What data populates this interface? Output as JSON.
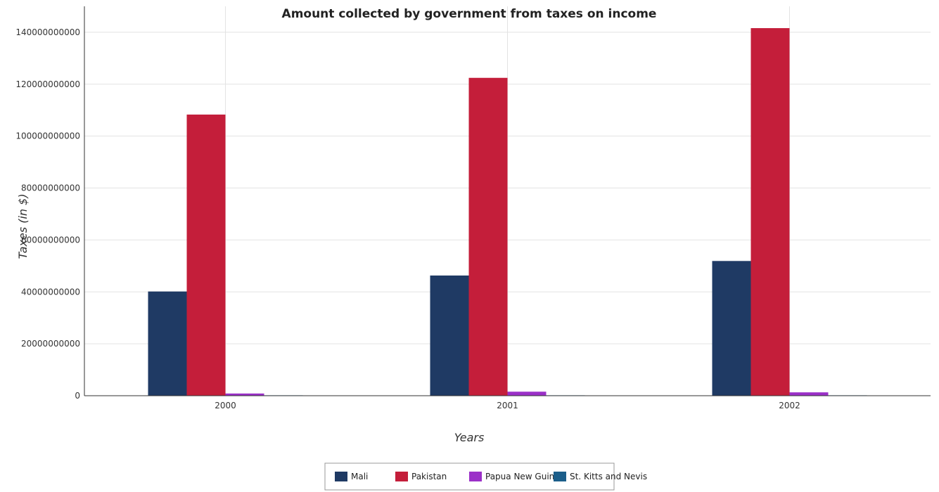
{
  "chart_data": {
    "type": "bar",
    "title": "Amount collected by government from taxes on income",
    "xlabel": "Years",
    "ylabel": "Taxes (in $)",
    "categories": [
      "2000",
      "2001",
      "2002"
    ],
    "ylim": [
      0,
      150000000000
    ],
    "yticks": [
      0,
      20000000000,
      40000000000,
      60000000000,
      80000000000,
      100000000000,
      120000000000,
      140000000000
    ],
    "ytick_labels": [
      "0",
      "20000000000",
      "40000000000",
      "60000000000",
      "80000000000",
      "100000000000",
      "120000000000",
      "140000000000"
    ],
    "grid": true,
    "legend_position": "bottom-center",
    "series": [
      {
        "name": "Mali",
        "color": "#1f3a64",
        "values": [
          40150000000,
          46300000000,
          51900000000
        ]
      },
      {
        "name": "Pakistan",
        "color": "#c41e3a",
        "values": [
          108300000000,
          122450000000,
          141600000000
        ]
      },
      {
        "name": "Papua New Guinea",
        "color": "#9b30c8",
        "values": [
          850000000,
          1550000000,
          1300000000
        ]
      },
      {
        "name": "St. Kitts and Nevis",
        "color": "#1c5e8a",
        "values": [
          50000000,
          50000000,
          50000000
        ]
      }
    ]
  }
}
